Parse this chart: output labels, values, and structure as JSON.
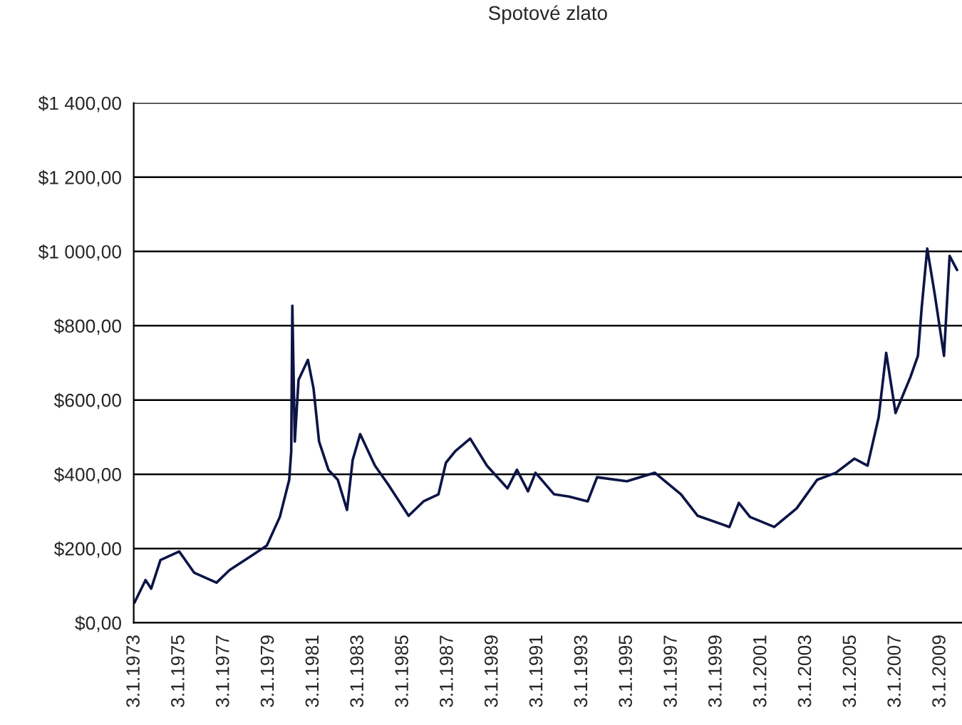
{
  "chart_data": {
    "type": "line",
    "title": "Spotové zlato",
    "x": [
      "1973-01",
      "1973-07",
      "1973-10",
      "1974-03",
      "1975-01",
      "1975-09",
      "1976-09",
      "1977-04",
      "1978-04",
      "1978-12",
      "1979-07",
      "1979-12",
      "1980-01-03",
      "1980-01-21",
      "1980-03",
      "1980-05",
      "1980-10",
      "1981-01",
      "1981-04",
      "1981-09",
      "1982-02",
      "1982-07",
      "1982-10",
      "1983-02",
      "1983-10",
      "1984-05",
      "1985-04",
      "1985-12",
      "1986-08",
      "1986-12",
      "1987-05",
      "1988-01",
      "1988-10",
      "1989-09",
      "1990-02",
      "1990-08",
      "1990-12",
      "1991-10",
      "1992-06",
      "1993-04",
      "1993-09",
      "1995-01",
      "1996-04",
      "1997-06",
      "1998-03",
      "1999-08",
      "2000-01",
      "2000-07",
      "2001-08",
      "2002-08",
      "2003-07",
      "2004-05",
      "2005-03",
      "2005-10",
      "2006-04",
      "2006-08",
      "2007-01",
      "2007-09",
      "2008-01",
      "2008-03",
      "2008-06",
      "2008-10",
      "2009-03",
      "2009-06",
      "2009-10"
    ],
    "series": [
      {
        "color": "#0c1446",
        "values": [
          54,
          115,
          92,
          169,
          192,
          135,
          108,
          142,
          181,
          208,
          285,
          385,
          462,
          854,
          488,
          654,
          708,
          631,
          488,
          412,
          385,
          304,
          438,
          508,
          423,
          373,
          288,
          327,
          346,
          431,
          462,
          496,
          423,
          362,
          412,
          354,
          404,
          346,
          340,
          327,
          392,
          381,
          404,
          346,
          288,
          258,
          323,
          285,
          258,
          308,
          385,
          404,
          442,
          423,
          554,
          727,
          565,
          662,
          719,
          846,
          1008,
          885,
          719,
          988,
          950
        ]
      }
    ],
    "xlim": [
      "1972-12-20",
      "2009-12-20"
    ],
    "xticks": [
      {
        "value": "1973-01-03",
        "label": "3.1.1973"
      },
      {
        "value": "1975-01-03",
        "label": "3.1.1975"
      },
      {
        "value": "1977-01-03",
        "label": "3.1.1977"
      },
      {
        "value": "1979-01-03",
        "label": "3.1.1979"
      },
      {
        "value": "1981-01-03",
        "label": "3.1.1981"
      },
      {
        "value": "1983-01-03",
        "label": "3.1.1983"
      },
      {
        "value": "1985-01-03",
        "label": "3.1.1985"
      },
      {
        "value": "1987-01-03",
        "label": "3.1.1987"
      },
      {
        "value": "1989-01-03",
        "label": "3.1.1989"
      },
      {
        "value": "1991-01-03",
        "label": "3.1.1991"
      },
      {
        "value": "1993-01-03",
        "label": "3.1.1993"
      },
      {
        "value": "1995-01-03",
        "label": "3.1.1995"
      },
      {
        "value": "1997-01-03",
        "label": "3.1.1997"
      },
      {
        "value": "1999-01-03",
        "label": "3.1.1999"
      },
      {
        "value": "2001-01-03",
        "label": "3.1.2001"
      },
      {
        "value": "2003-01-03",
        "label": "3.1.2003"
      },
      {
        "value": "2005-01-03",
        "label": "3.1.2005"
      },
      {
        "value": "2007-01-03",
        "label": "3.1.2007"
      },
      {
        "value": "2009-01-03",
        "label": "3.1.2009"
      }
    ],
    "ylim": [
      0,
      1400
    ],
    "yticks": [
      {
        "value": 0,
        "label": "$0,00"
      },
      {
        "value": 200,
        "label": "$200,00"
      },
      {
        "value": 400,
        "label": "$400,00"
      },
      {
        "value": 600,
        "label": "$600,00"
      },
      {
        "value": 800,
        "label": "$800,00"
      },
      {
        "value": 1000,
        "label": "$1 000,00"
      },
      {
        "value": 1200,
        "label": "$1 200,00"
      },
      {
        "value": 1400,
        "label": "$1 400,00"
      }
    ],
    "grid": "y",
    "marker": "none",
    "line_style": "solid"
  }
}
